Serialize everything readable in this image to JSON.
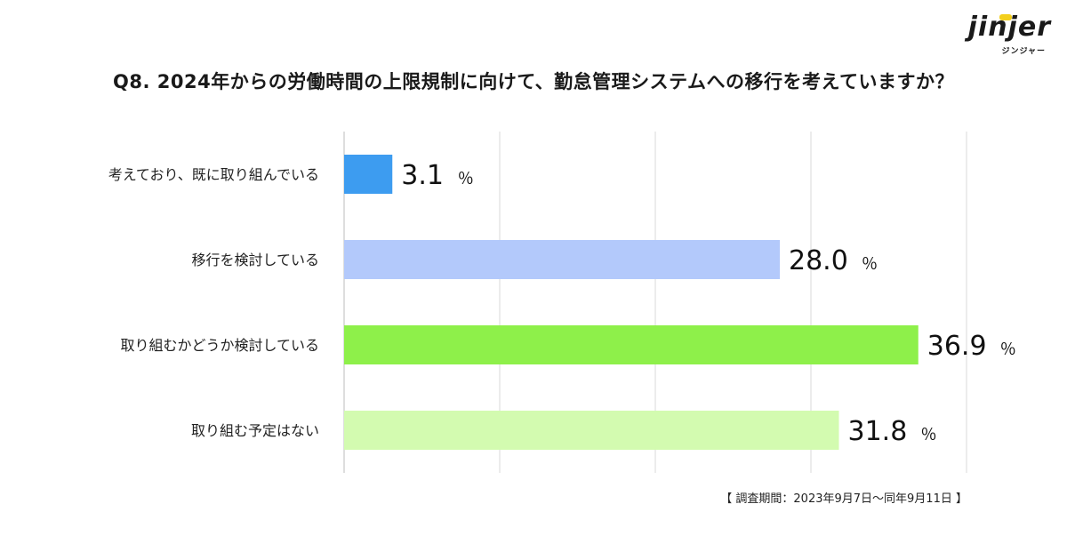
{
  "brand": {
    "name": "jinjer",
    "sub": "ジンジャー"
  },
  "title": "Q8. 2024年からの労働時間の上限規制に向けて、勤怠管理システムへの移行を考えていますか？",
  "note": "【 調査期間：2023年9月7日〜同年9月11日 】",
  "chart_data": {
    "type": "bar",
    "orientation": "horizontal",
    "categories": [
      "考えており、既に取り組んでいる",
      "移行を検討している",
      "取り組むかどうか検討している",
      "取り組む予定はない"
    ],
    "values": [
      3.1,
      28.0,
      36.9,
      31.8
    ],
    "value_labels": [
      "3.1",
      "28.0",
      "36.9",
      "31.8"
    ],
    "unit": "％",
    "colors": [
      "#3d9cf0",
      "#b3c9fb",
      "#8ef04a",
      "#d3fbb0"
    ],
    "xlim": [
      0,
      40
    ],
    "gridlines": [
      0,
      10,
      20,
      30,
      40
    ],
    "grid": true,
    "legend": "none"
  }
}
